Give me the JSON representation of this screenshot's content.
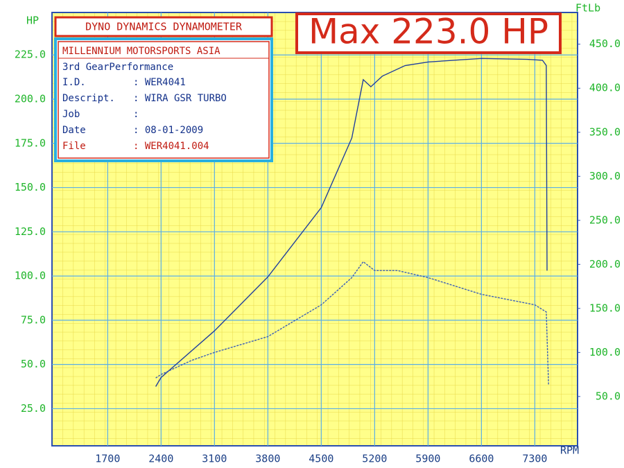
{
  "chart_data": {
    "type": "line",
    "title": "DYNO DYNAMICS DYNAMOMETER",
    "annotation": "Max 223.0 HP",
    "ylabel": "HP",
    "y2label": "FtLb",
    "xlabel": "RPM",
    "xlim": [
      970,
      7860
    ],
    "xticks": [
      1700,
      2400,
      3100,
      3800,
      4500,
      5200,
      5900,
      6600,
      7300
    ],
    "ylim": [
      4,
      249
    ],
    "yticks": [
      {
        "value": 25,
        "label": "25.0"
      },
      {
        "value": 50,
        "label": "50.0"
      },
      {
        "value": 75,
        "label": "75.0"
      },
      {
        "value": 100,
        "label": "100.0"
      },
      {
        "value": 125,
        "label": "125.0"
      },
      {
        "value": 150,
        "label": "150.0"
      },
      {
        "value": 175,
        "label": "175.0"
      },
      {
        "value": 200,
        "label": "200.0"
      },
      {
        "value": 225,
        "label": "225.0"
      }
    ],
    "y2lim": [
      -6,
      486
    ],
    "y2ticks": [
      {
        "value": 50,
        "label": "50.0"
      },
      {
        "value": 100,
        "label": "100.0"
      },
      {
        "value": 150,
        "label": "150.0"
      },
      {
        "value": 200,
        "label": "200.0"
      },
      {
        "value": 250,
        "label": "250.0"
      },
      {
        "value": 300,
        "label": "300.0"
      },
      {
        "value": 350,
        "label": "350.0"
      },
      {
        "value": 400,
        "label": "400.0"
      },
      {
        "value": 450,
        "label": "450.0"
      }
    ],
    "grid": true,
    "series": [
      {
        "color": "#1f3f9e",
        "x": [
          2330,
          2400,
          3100,
          3800,
          4500,
          4900,
          5050,
          5150,
          5300,
          5600,
          5900,
          6600,
          7200,
          7400,
          7450,
          7460
        ],
        "values": [
          37.5,
          42.6,
          69,
          99.5,
          138.7,
          178,
          211,
          207,
          213,
          219,
          221,
          223,
          222.5,
          222,
          219,
          103
        ]
      },
      {
        "color": "#3a5fb8",
        "axis": "y2",
        "x": [
          2330,
          2400,
          2800,
          3100,
          3800,
          4500,
          4900,
          5050,
          5200,
          5500,
          5900,
          6600,
          7300,
          7450,
          7480
        ],
        "values": [
          71,
          75,
          91,
          100,
          118,
          154,
          185,
          203,
          193,
          193,
          185,
          166,
          154,
          146,
          63
        ]
      }
    ],
    "info": {
      "company": "MILLENNIUM MOTORSPORTS ASIA",
      "test": "3rd GearPerformance",
      "rows": [
        [
          "I.D.",
          ": WER4041"
        ],
        [
          "Descript.",
          ": WIRA GSR TURBO"
        ],
        [
          "Job",
          ":"
        ],
        [
          "Date",
          ": 08-01-2009"
        ],
        [
          "File",
          ": WER4041.004"
        ]
      ]
    }
  }
}
